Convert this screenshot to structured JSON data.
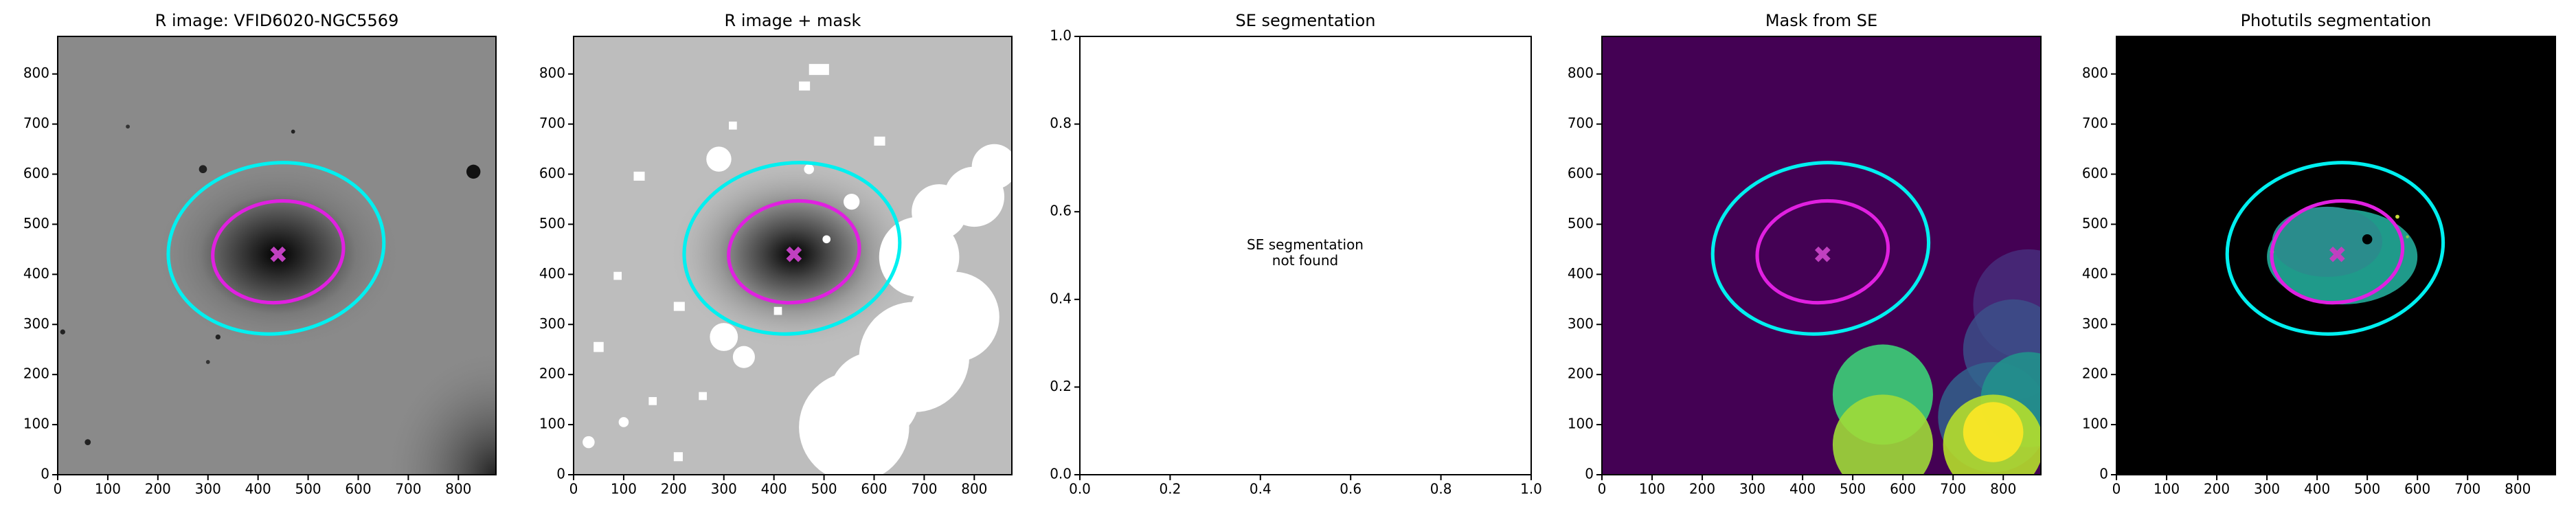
{
  "chart_data": [
    {
      "type": "image",
      "title": "R image: VFID6020-NGC5569",
      "xlim": [
        0,
        875
      ],
      "ylim": [
        0,
        875
      ],
      "xticks": [
        0,
        100,
        200,
        300,
        400,
        500,
        600,
        700,
        800
      ],
      "yticks": [
        0,
        100,
        200,
        300,
        400,
        500,
        600,
        700,
        800
      ]
    },
    {
      "type": "image",
      "title": "R image + mask",
      "xlim": [
        0,
        875
      ],
      "ylim": [
        0,
        875
      ],
      "xticks": [
        0,
        100,
        200,
        300,
        400,
        500,
        600,
        700,
        800
      ],
      "yticks": [
        0,
        100,
        200,
        300,
        400,
        500,
        600,
        700,
        800
      ]
    },
    {
      "type": "plot",
      "title": "SE segmentation",
      "annotation": "SE segmentation\nnot found",
      "xlim": [
        0,
        1
      ],
      "ylim": [
        0,
        1
      ],
      "xticks": [
        {
          "value": 0,
          "label": "0.0"
        },
        0.2,
        0.4,
        0.6,
        0.8,
        {
          "value": 1,
          "label": "1.0"
        }
      ],
      "yticks": [
        {
          "value": 0,
          "label": "0.0"
        },
        0.2,
        0.4,
        0.6,
        0.8,
        {
          "value": 1,
          "label": "1.0"
        }
      ]
    },
    {
      "type": "image",
      "title": "Mask from SE",
      "xlim": [
        0,
        875
      ],
      "ylim": [
        0,
        875
      ],
      "xticks": [
        0,
        100,
        200,
        300,
        400,
        500,
        600,
        700,
        800
      ],
      "yticks": [
        0,
        100,
        200,
        300,
        400,
        500,
        600,
        700,
        800
      ]
    },
    {
      "type": "image",
      "title": "Photutils segmentation",
      "xlim": [
        0,
        875
      ],
      "ylim": [
        0,
        875
      ],
      "xticks": [
        0,
        100,
        200,
        300,
        400,
        500,
        600,
        700,
        800
      ],
      "yticks": [
        0,
        100,
        200,
        300,
        400,
        500,
        600,
        700,
        800
      ]
    }
  ]
}
